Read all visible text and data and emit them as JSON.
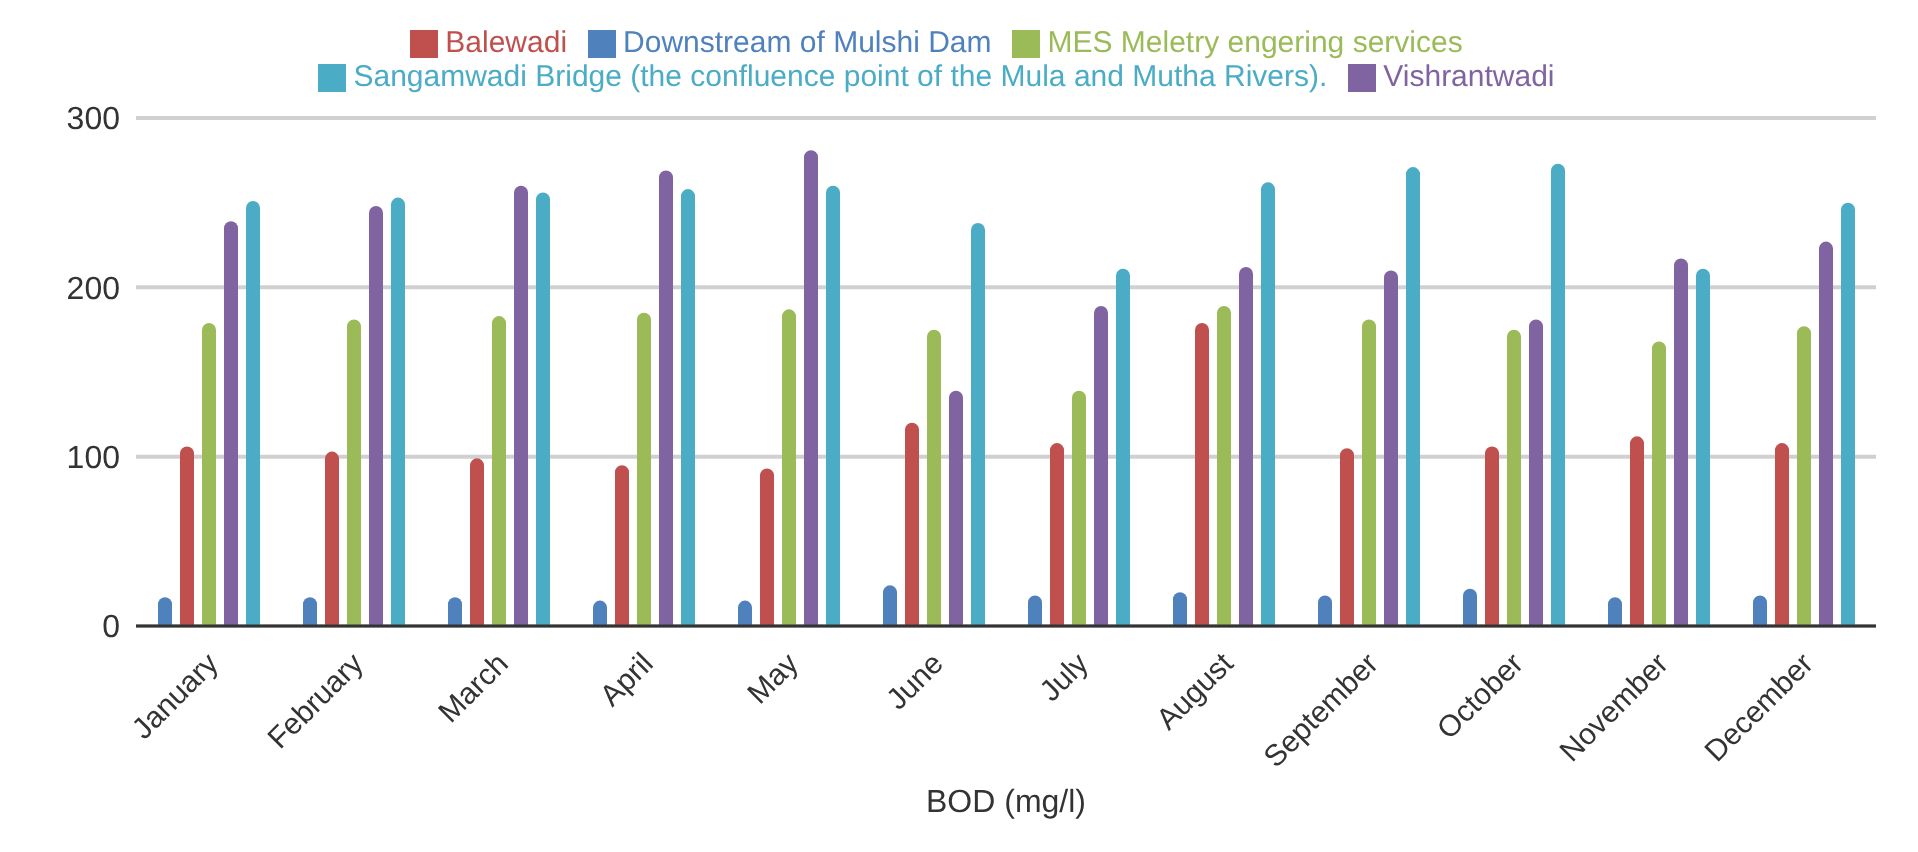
{
  "chart_data": {
    "type": "bar",
    "xlabel": "BOD (mg/l)",
    "categories": [
      "January",
      "February",
      "March",
      "April",
      "May",
      "June",
      "July",
      "August",
      "September",
      "October",
      "November",
      "December"
    ],
    "series": [
      {
        "name": "Downstream of Mulshi Dam",
        "color": "#4f81bd",
        "values": [
          17,
          17,
          17,
          15,
          15,
          24,
          18,
          20,
          18,
          22,
          17,
          18
        ]
      },
      {
        "name": "Balewadi",
        "color": "#c0504d",
        "values": [
          106,
          103,
          99,
          95,
          93,
          120,
          108,
          179,
          105,
          106,
          112,
          108
        ]
      },
      {
        "name": "MES Meletry engering services",
        "color": "#9bbb59",
        "values": [
          179,
          181,
          183,
          185,
          187,
          175,
          139,
          189,
          181,
          175,
          168,
          177
        ]
      },
      {
        "name": "Vishrantwadi",
        "color": "#8064a2",
        "values": [
          239,
          248,
          260,
          269,
          281,
          139,
          189,
          212,
          210,
          181,
          217,
          227
        ]
      },
      {
        "name": "Sangamwadi Bridge (the confluence point of the Mula and Mutha Rivers).",
        "color": "#4bacc6",
        "values": [
          251,
          253,
          256,
          258,
          260,
          238,
          211,
          262,
          271,
          273,
          211,
          250
        ]
      }
    ],
    "ylim": [
      0,
      300
    ],
    "yticks": [
      0,
      100,
      200,
      300
    ],
    "grid": "y",
    "legend": "top"
  }
}
